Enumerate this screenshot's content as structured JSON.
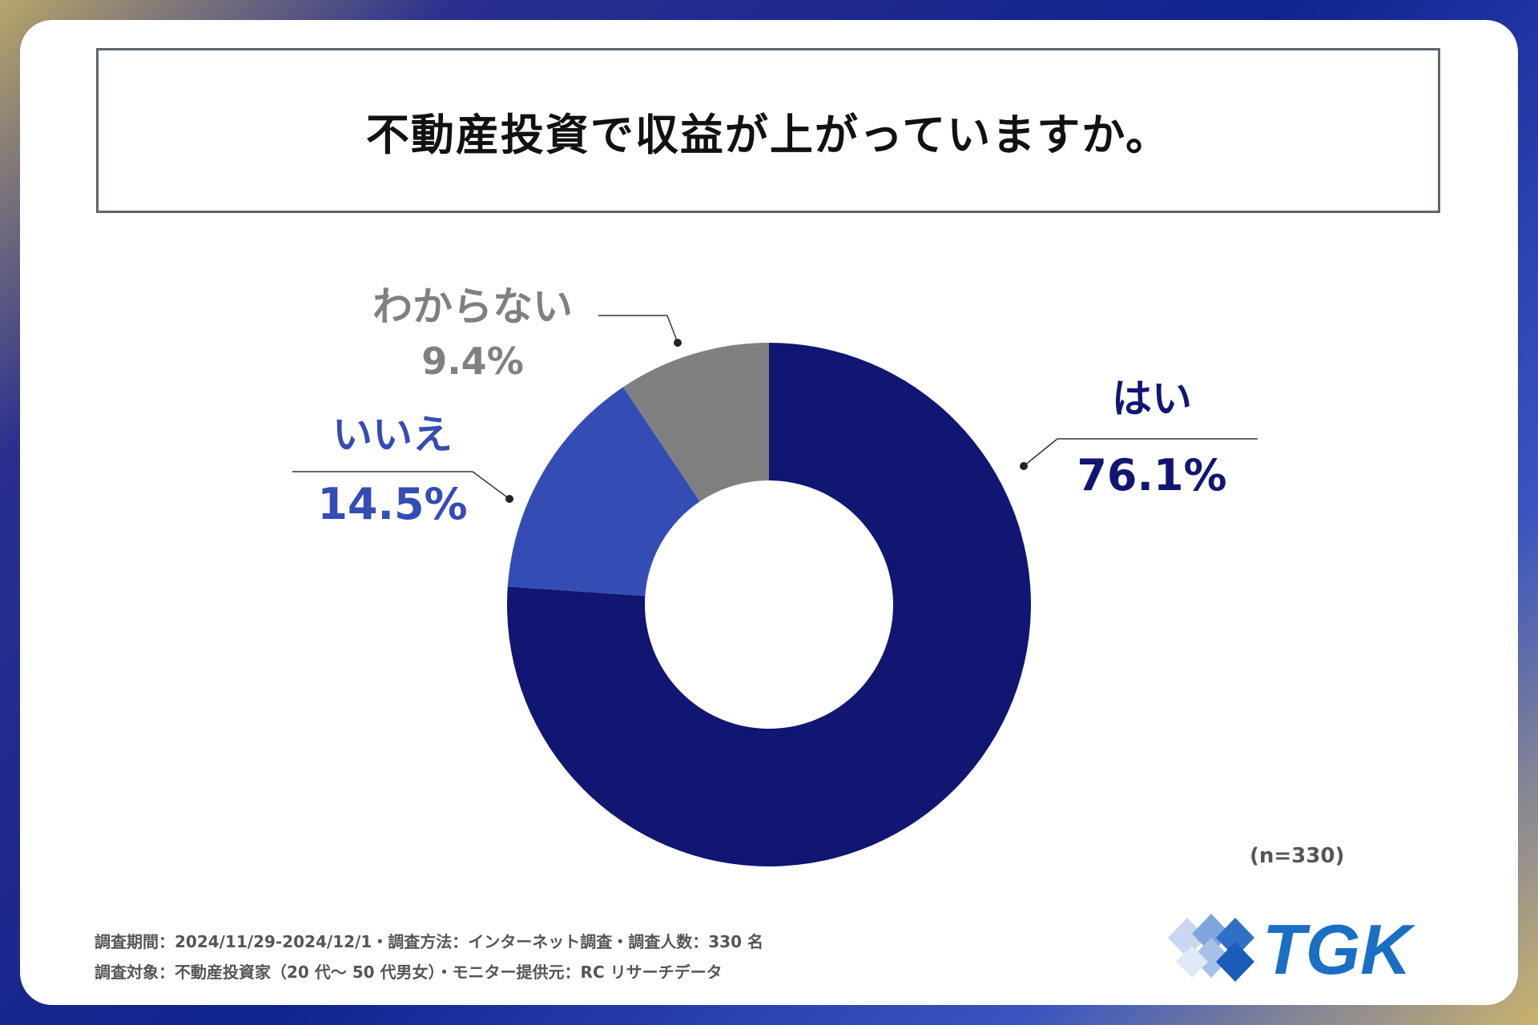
{
  "title": "不動産投資で収益が上がっていますか。",
  "chart_data": {
    "type": "pie",
    "variant": "donut",
    "slices": [
      {
        "label": "はい",
        "value": 76.1,
        "display": "76.1%",
        "color": "#101672"
      },
      {
        "label": "いいえ",
        "value": 14.5,
        "display": "14.5%",
        "color": "#344db5"
      },
      {
        "label": "わからない",
        "value": 9.4,
        "display": "9.4%",
        "color": "#808080"
      }
    ],
    "start": "12 o'clock",
    "direction": "clockwise",
    "legend": "none"
  },
  "sample_size": "(n=330)",
  "footer": {
    "line1": "調査期間：2024/11/29-2024/12/1・調査方法：インターネット調査・調査人数：330 名",
    "line2": "調査対象：不動産投資家（20 代～ 50 代男女）・モニター提供元：RC リサーチデータ"
  },
  "logo": {
    "text": "TGK",
    "icon": "diamond-tiles-icon",
    "color": "#1a6fc4"
  }
}
